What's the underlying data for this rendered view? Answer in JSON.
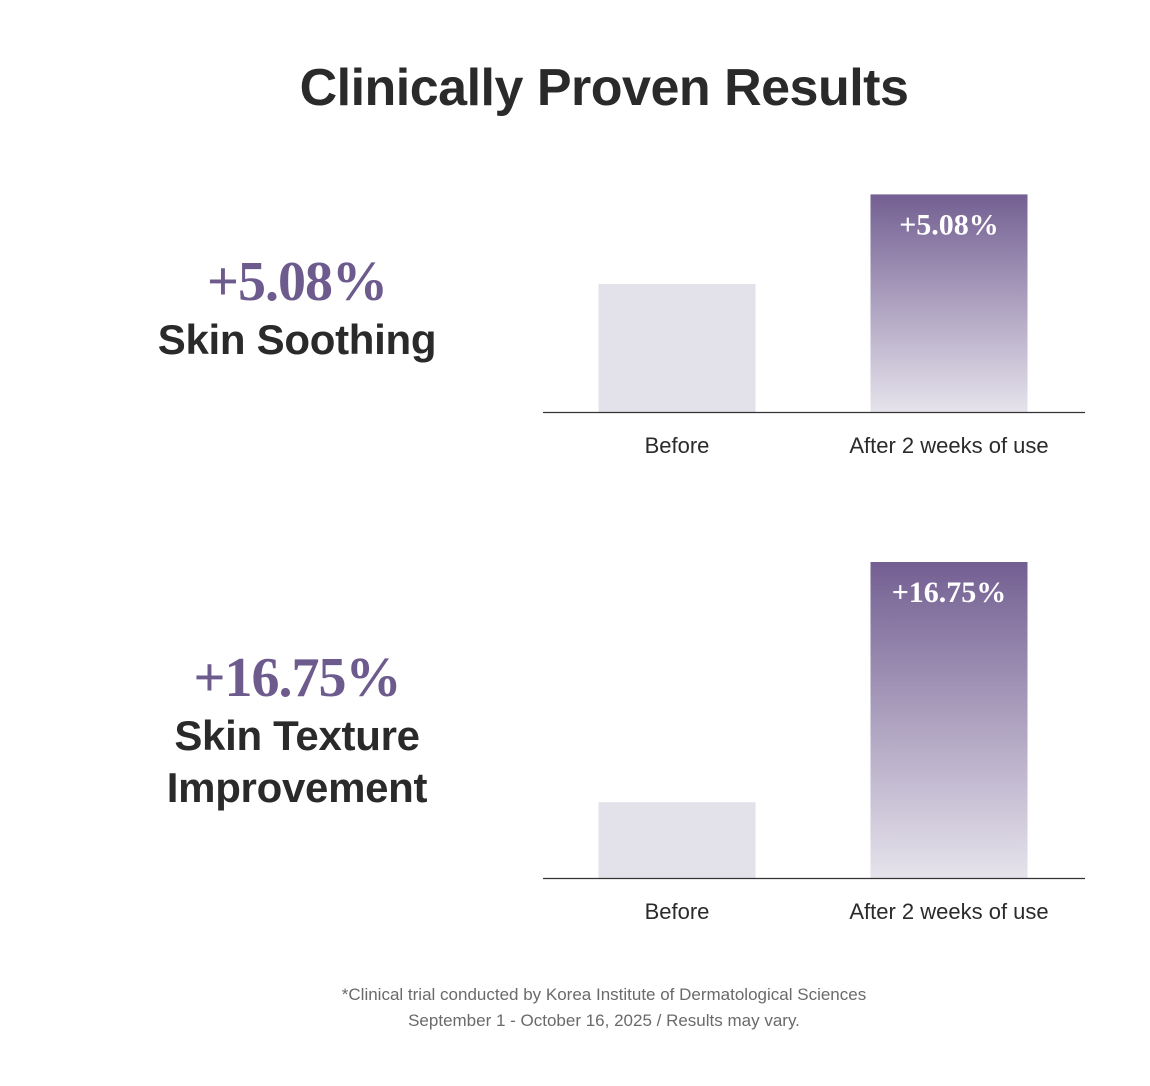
{
  "title": "Clinically Proven Results",
  "colors": {
    "accent": "#6e5b8e",
    "bar_top": "#735f92",
    "bar_bottom": "#e6e3ec",
    "before_bar": "#e3e1ea",
    "axis": "#333333"
  },
  "stats": [
    {
      "value": "+5.08%",
      "label_lines": [
        "Skin Soothing"
      ]
    },
    {
      "value": "+16.75%",
      "label_lines": [
        "Skin Texture",
        "Improvement"
      ]
    }
  ],
  "chart_data": [
    {
      "type": "bar",
      "categories": [
        "Before",
        "After 2 weeks of use"
      ],
      "values": [
        1.0,
        1.7
      ],
      "data_labels": [
        "",
        "+5.08%"
      ],
      "ylim": [
        0,
        1.75
      ],
      "title": "",
      "xlabel": "",
      "ylabel": "",
      "grid": false
    },
    {
      "type": "bar",
      "categories": [
        "Before",
        "After 2 weeks of use"
      ],
      "values": [
        0.24,
        1.0
      ],
      "data_labels": [
        "",
        "+16.75%"
      ],
      "ylim": [
        0,
        1.0
      ],
      "title": "",
      "xlabel": "",
      "ylabel": "",
      "grid": false
    }
  ],
  "footnote": {
    "line1": "*Clinical trial conducted by Korea Institute of Dermatological Sciences",
    "line2": "September 1 - October 16, 2025 / Results may vary."
  }
}
